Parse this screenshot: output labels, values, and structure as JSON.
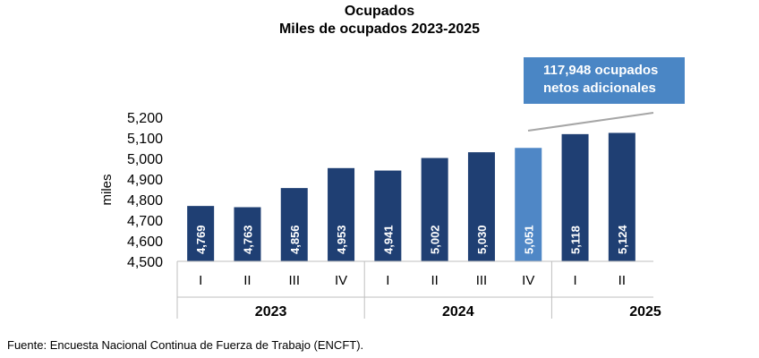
{
  "chart_data": {
    "type": "bar",
    "title": "Ocupados",
    "subtitle": "Miles de ocupados 2023-2025",
    "ylabel": "miles",
    "ylim": [
      4500,
      5200
    ],
    "yticks": [
      "4,500",
      "4,600",
      "4,700",
      "4,800",
      "4,900",
      "5,000",
      "5,100",
      "5,200"
    ],
    "categories": [
      "I",
      "II",
      "III",
      "IV",
      "I",
      "II",
      "III",
      "IV",
      "I",
      "II"
    ],
    "years": [
      {
        "label": "2023",
        "quarters": 4
      },
      {
        "label": "2024",
        "quarters": 4
      },
      {
        "label": "2025",
        "quarters": 2
      }
    ],
    "values": [
      4769,
      4763,
      4856,
      4953,
      4941,
      5002,
      5030,
      5051,
      5118,
      5124
    ],
    "value_labels": [
      "4,769",
      "4,763",
      "4,856",
      "4,953",
      "4,941",
      "5,002",
      "5,030",
      "5,051",
      "5,118",
      "5,124"
    ],
    "highlight_index": 7,
    "colors": {
      "bar": "#1f3f73",
      "highlight": "#4f87c6",
      "callout": "#4a86c5",
      "axis": "#bfbfbf"
    },
    "annotation": {
      "line1": "117,948 ocupados",
      "line2": "netos adicionales"
    }
  },
  "source": "Fuente: Encuesta Nacional Continua de Fuerza de Trabajo (ENCFT)."
}
